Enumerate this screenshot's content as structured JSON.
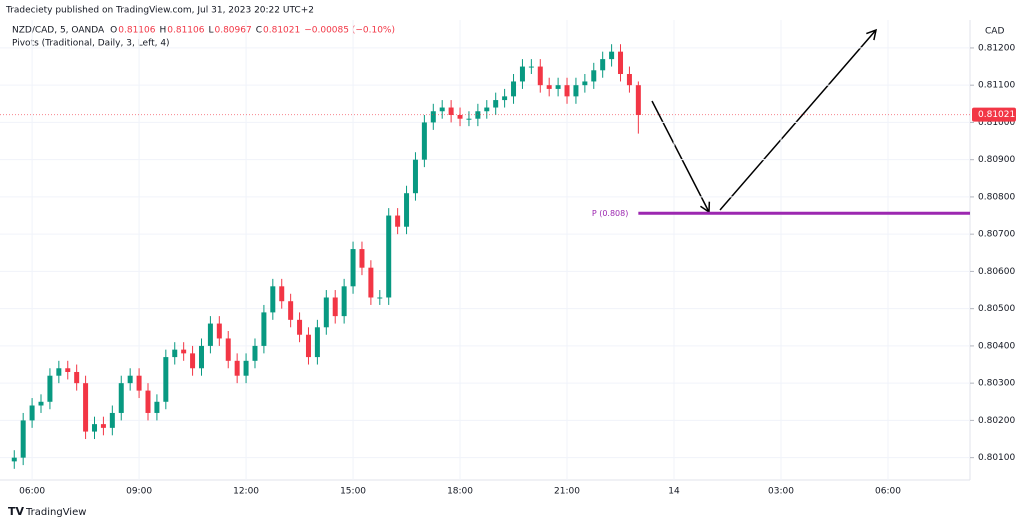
{
  "header": {
    "published": "Tradeciety published on TradingView.com, Jul 31, 2023 20:22 UTC+2",
    "brand": "TradingView"
  },
  "chart_data": {
    "type": "candlestick",
    "symbol": "NZD/CAD, 5, OANDA",
    "ohlc_legend": [
      {
        "label": "O",
        "value": 0.81106
      },
      {
        "label": "H",
        "value": 0.81106
      },
      {
        "label": "L",
        "value": 0.80967
      },
      {
        "label": "C",
        "value": 0.81021
      }
    ],
    "change": "−0.00085 (−0.10%)",
    "indicator": "Pivots (Traditional, Daily, 3, Left, 4)",
    "currency": "CAD",
    "up_color": "#089981",
    "down_color": "#f23645",
    "x": [
      5.5,
      5.75,
      6,
      6.25,
      6.5,
      6.75,
      7,
      7.25,
      7.5,
      7.75,
      8,
      8.25,
      8.5,
      8.75,
      9,
      9.25,
      9.5,
      9.75,
      10,
      10.25,
      10.5,
      10.75,
      11,
      11.25,
      11.5,
      11.75,
      12,
      12.25,
      12.5,
      12.75,
      13,
      13.25,
      13.5,
      13.75,
      14,
      14.25,
      14.5,
      14.75,
      15,
      15.25,
      15.5,
      15.75,
      16,
      16.25,
      16.5,
      16.75,
      17,
      17.25,
      17.5,
      17.75,
      18,
      18.25,
      18.5,
      18.75,
      19,
      19.25,
      19.5,
      19.75,
      20,
      20.25,
      20.5,
      20.75,
      21,
      21.25,
      21.5,
      21.75,
      22,
      22.25,
      22.5,
      22.75,
      23
    ],
    "open": [
      0.8009,
      0.801,
      0.802,
      0.8024,
      0.8025,
      0.8032,
      0.8034,
      0.8033,
      0.803,
      0.8017,
      0.8019,
      0.8018,
      0.8022,
      0.803,
      0.8032,
      0.8028,
      0.8022,
      0.8025,
      0.8037,
      0.8039,
      0.8038,
      0.8034,
      0.804,
      0.8046,
      0.8042,
      0.8036,
      0.8032,
      0.8036,
      0.804,
      0.8049,
      0.8056,
      0.8052,
      0.8047,
      0.8043,
      0.8037,
      0.8045,
      0.8053,
      0.8048,
      0.8056,
      0.8066,
      0.8061,
      0.8053,
      0.8053,
      0.8075,
      0.8072,
      0.8081,
      0.809,
      0.81,
      0.8103,
      0.8104,
      0.8102,
      0.8101,
      0.8101,
      0.8103,
      0.8104,
      0.8106,
      0.8107,
      0.8111,
      0.8115,
      0.8115,
      0.811,
      0.8109,
      0.811,
      0.8107,
      0.811,
      0.8111,
      0.8114,
      0.8117,
      0.8119,
      0.8113,
      0.811
    ],
    "high": [
      0.8012,
      0.8022,
      0.8026,
      0.8027,
      0.8034,
      0.8036,
      0.8036,
      0.8035,
      0.8032,
      0.8021,
      0.8021,
      0.8024,
      0.8032,
      0.8034,
      0.8034,
      0.803,
      0.8027,
      0.8039,
      0.8041,
      0.8041,
      0.804,
      0.8042,
      0.8048,
      0.8048,
      0.8044,
      0.8038,
      0.8038,
      0.8042,
      0.8051,
      0.8058,
      0.8058,
      0.8054,
      0.8049,
      0.8045,
      0.8047,
      0.8055,
      0.8055,
      0.8058,
      0.8068,
      0.8068,
      0.8063,
      0.8055,
      0.8077,
      0.8077,
      0.8083,
      0.8092,
      0.8102,
      0.8105,
      0.8106,
      0.8106,
      0.8104,
      0.8103,
      0.8105,
      0.8106,
      0.8108,
      0.8109,
      0.8113,
      0.8117,
      0.8117,
      0.8117,
      0.8112,
      0.8112,
      0.8112,
      0.8112,
      0.8113,
      0.8116,
      0.8119,
      0.8121,
      0.8121,
      0.8115,
      0.8111
    ],
    "low": [
      0.8007,
      0.8008,
      0.8018,
      0.8022,
      0.8023,
      0.803,
      0.8031,
      0.8028,
      0.8015,
      0.8015,
      0.8016,
      0.8016,
      0.802,
      0.8028,
      0.8026,
      0.802,
      0.802,
      0.8023,
      0.8035,
      0.8036,
      0.8032,
      0.8032,
      0.8038,
      0.804,
      0.8034,
      0.803,
      0.803,
      0.8034,
      0.8038,
      0.8047,
      0.805,
      0.8045,
      0.8041,
      0.8035,
      0.8035,
      0.8043,
      0.8046,
      0.8046,
      0.8054,
      0.8059,
      0.8051,
      0.8051,
      0.8051,
      0.807,
      0.807,
      0.8079,
      0.8088,
      0.8098,
      0.8101,
      0.81,
      0.8099,
      0.8099,
      0.8099,
      0.8101,
      0.8102,
      0.8104,
      0.8105,
      0.8109,
      0.8113,
      0.8108,
      0.8107,
      0.8107,
      0.8105,
      0.8105,
      0.8108,
      0.8109,
      0.8112,
      0.8115,
      0.8111,
      0.8108,
      0.8097
    ],
    "close": [
      0.801,
      0.802,
      0.8024,
      0.8025,
      0.8032,
      0.8034,
      0.8033,
      0.803,
      0.8017,
      0.8019,
      0.8018,
      0.8022,
      0.803,
      0.8032,
      0.8028,
      0.8022,
      0.8025,
      0.8037,
      0.8039,
      0.8038,
      0.8034,
      0.804,
      0.8046,
      0.8042,
      0.8036,
      0.8032,
      0.8036,
      0.804,
      0.8049,
      0.8056,
      0.8052,
      0.8047,
      0.8043,
      0.8037,
      0.8045,
      0.8053,
      0.8048,
      0.8056,
      0.8066,
      0.8061,
      0.8053,
      0.8053,
      0.8075,
      0.8072,
      0.8081,
      0.809,
      0.81,
      0.8103,
      0.8104,
      0.8102,
      0.8101,
      0.8101,
      0.8103,
      0.8104,
      0.8106,
      0.8107,
      0.8111,
      0.8115,
      0.8115,
      0.811,
      0.8109,
      0.811,
      0.8107,
      0.811,
      0.8111,
      0.8114,
      0.8117,
      0.8119,
      0.8113,
      0.811,
      0.8102
    ],
    "last_price": 0.81021,
    "pivot": {
      "label": "P (0.808)",
      "value": 0.80756,
      "color": "#9c27b0"
    },
    "xlim": [
      5.1,
      32.3
    ],
    "ylim": [
      0.8004,
      0.81275
    ],
    "xticks": [
      {
        "value": 6,
        "label": "06:00"
      },
      {
        "value": 9,
        "label": "09:00"
      },
      {
        "value": 12,
        "label": "12:00"
      },
      {
        "value": 15,
        "label": "15:00"
      },
      {
        "value": 18,
        "label": "18:00"
      },
      {
        "value": 21,
        "label": "21:00"
      },
      {
        "value": 24,
        "label": "14"
      },
      {
        "value": 27,
        "label": "03:00"
      },
      {
        "value": 30,
        "label": "06:00"
      }
    ],
    "yticks": [
      {
        "value": 0.801,
        "label": "0.80100"
      },
      {
        "value": 0.802,
        "label": "0.80200"
      },
      {
        "value": 0.803,
        "label": "0.80300"
      },
      {
        "value": 0.804,
        "label": "0.80400"
      },
      {
        "value": 0.805,
        "label": "0.80500"
      },
      {
        "value": 0.806,
        "label": "0.80600"
      },
      {
        "value": 0.807,
        "label": "0.80700"
      },
      {
        "value": 0.808,
        "label": "0.80800"
      },
      {
        "value": 0.809,
        "label": "0.80900"
      },
      {
        "value": 0.81,
        "label": "0.81000"
      },
      {
        "value": 0.811,
        "label": "0.81100"
      },
      {
        "value": 0.812,
        "label": "0.81200"
      }
    ],
    "grid": true
  }
}
